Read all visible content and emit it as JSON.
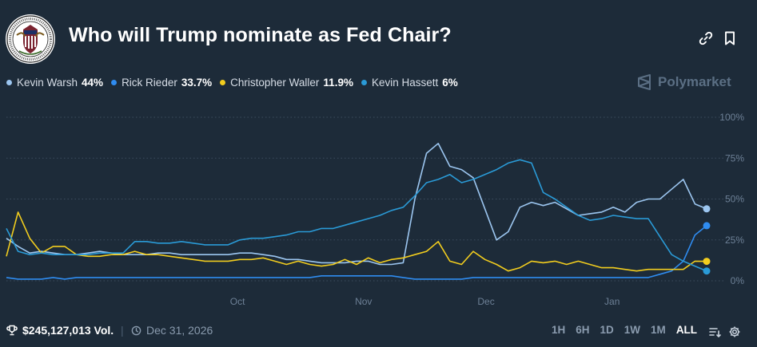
{
  "header": {
    "title": "Who will Trump nominate as Fed Chair?",
    "logo": "federal-reserve-seal",
    "actions": [
      {
        "name": "link-icon"
      },
      {
        "name": "bookmark-icon"
      }
    ]
  },
  "legend": [
    {
      "name": "Kevin Warsh",
      "value": "44%",
      "color": "#9cc6f0"
    },
    {
      "name": "Rick Rieder",
      "value": "33.7%",
      "color": "#2f8cf0"
    },
    {
      "name": "Christopher Waller",
      "value": "11.9%",
      "color": "#f2cd1e"
    },
    {
      "name": "Kevin Hassett",
      "value": "6%",
      "color": "#2a9ad6"
    }
  ],
  "brand": {
    "name": "Polymarket"
  },
  "footer": {
    "volume": "$245,127,013 Vol.",
    "end_date": "Dec 31, 2026",
    "ranges": [
      "1H",
      "6H",
      "1D",
      "1W",
      "1M",
      "ALL"
    ],
    "active_range": "ALL"
  },
  "chart_data": {
    "type": "line",
    "title": "Who will Trump nominate as Fed Chair?",
    "x_ticks": [
      "Oct",
      "Nov",
      "Dec",
      "Jan"
    ],
    "y_ticks": [
      "100%",
      "75%",
      "50%",
      "25%",
      "0%"
    ],
    "ylim": [
      0,
      100
    ],
    "grid": true,
    "legend_position": "top-left",
    "series": [
      {
        "name": "Kevin Warsh",
        "color": "#9cc6f0",
        "values": [
          26,
          21,
          17,
          18,
          17,
          16,
          16,
          17,
          18,
          17,
          16,
          16,
          16,
          17,
          17,
          16,
          16,
          16,
          16,
          16,
          17,
          17,
          16,
          15,
          13,
          13,
          12,
          11,
          11,
          11,
          12,
          12,
          10,
          10,
          11,
          50,
          78,
          84,
          70,
          68,
          63,
          44,
          25,
          30,
          45,
          48,
          46,
          48,
          44,
          40,
          41,
          42,
          45,
          42,
          48,
          50,
          50,
          56,
          62,
          47,
          44
        ],
        "end_label": "44%"
      },
      {
        "name": "Rick Rieder",
        "color": "#2f8cf0",
        "values": [
          2,
          1,
          1,
          1,
          2,
          1,
          2,
          2,
          2,
          2,
          2,
          2,
          2,
          2,
          2,
          2,
          2,
          2,
          2,
          2,
          2,
          2,
          2,
          2,
          2,
          2,
          2,
          3,
          3,
          3,
          3,
          3,
          3,
          3,
          2,
          1,
          1,
          1,
          1,
          1,
          2,
          2,
          2,
          2,
          2,
          2,
          2,
          2,
          2,
          2,
          2,
          2,
          2,
          2,
          2,
          2,
          4,
          6,
          12,
          28,
          33.7
        ],
        "end_label": "33.7%"
      },
      {
        "name": "Christopher Waller",
        "color": "#f2cd1e",
        "values": [
          15,
          42,
          26,
          17,
          21,
          21,
          16,
          15,
          15,
          16,
          16,
          18,
          16,
          16,
          15,
          14,
          13,
          12,
          12,
          12,
          13,
          13,
          14,
          12,
          10,
          12,
          10,
          9,
          10,
          13,
          10,
          14,
          11,
          13,
          14,
          16,
          18,
          24,
          12,
          10,
          18,
          13,
          10,
          6,
          8,
          12,
          11,
          12,
          10,
          12,
          10,
          8,
          8,
          7,
          6,
          7,
          7,
          7,
          7,
          12,
          11.9
        ],
        "end_label": "11.9%"
      },
      {
        "name": "Kevin Hassett",
        "color": "#2a9ad6",
        "values": [
          32,
          18,
          16,
          17,
          16,
          16,
          16,
          16,
          17,
          17,
          17,
          24,
          24,
          23,
          23,
          24,
          23,
          22,
          22,
          22,
          25,
          26,
          26,
          27,
          28,
          30,
          30,
          32,
          32,
          34,
          36,
          38,
          40,
          43,
          45,
          52,
          60,
          62,
          65,
          60,
          62,
          65,
          68,
          72,
          74,
          72,
          54,
          50,
          45,
          40,
          37,
          38,
          40,
          39,
          38,
          38,
          27,
          16,
          12,
          9,
          6
        ],
        "end_label": "6%"
      }
    ]
  }
}
